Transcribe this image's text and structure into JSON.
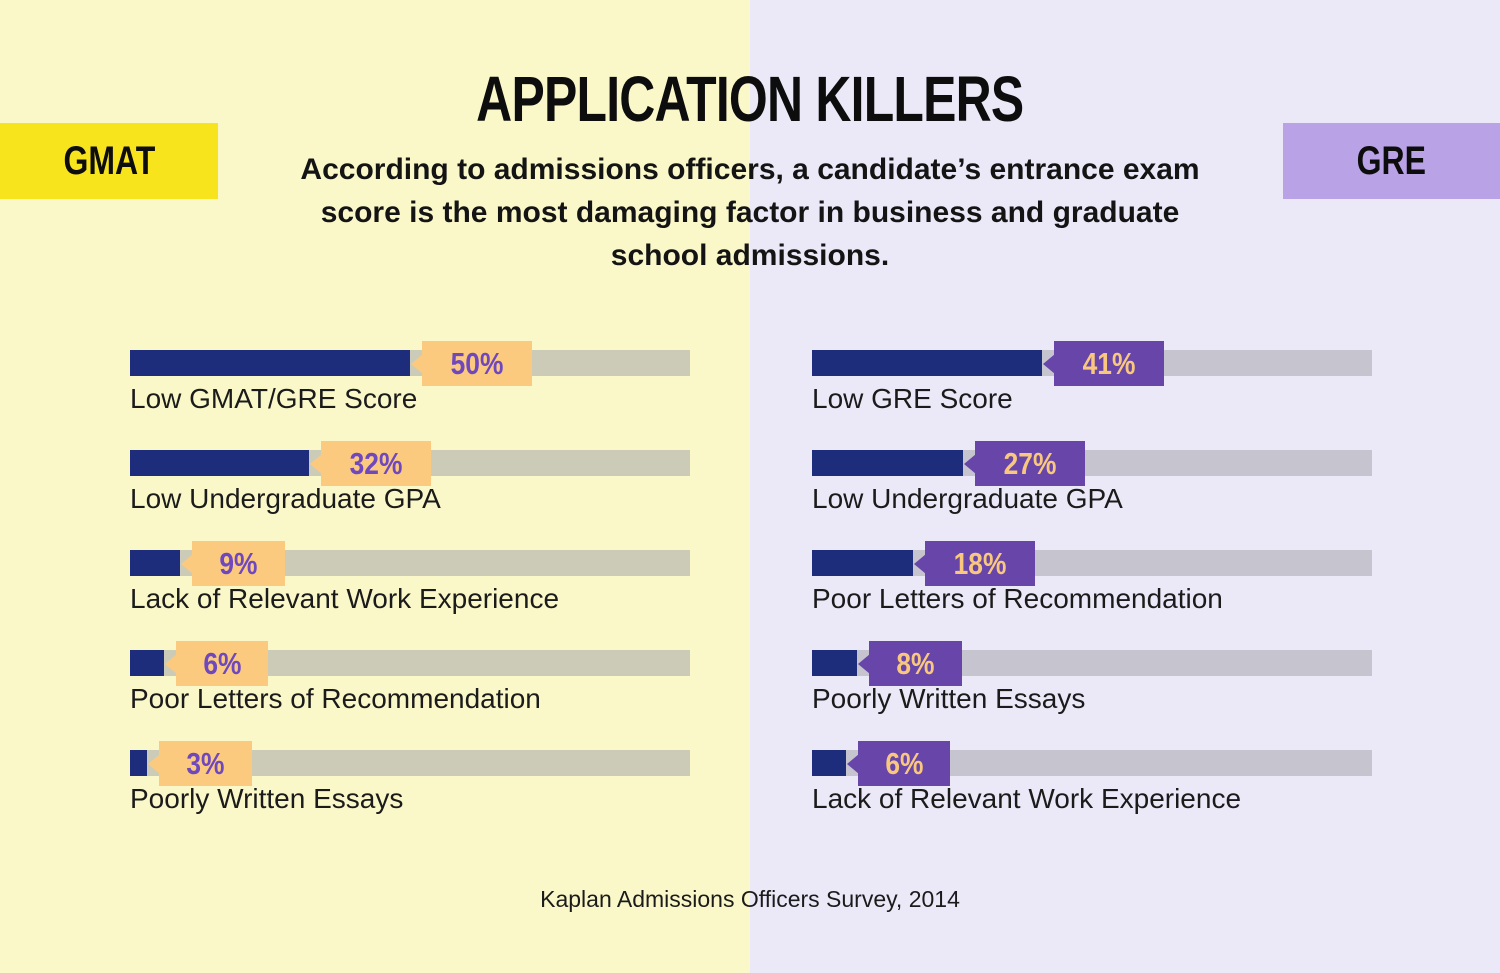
{
  "header": {
    "title": "APPLICATION KILLERS",
    "subtitle": "According to admissions officers, a candidate’s entrance exam score is the most damaging factor in business and graduate school admissions.",
    "gmat_badge_label": "GMAT",
    "gre_badge_label": "GRE"
  },
  "footer": {
    "source": "Kaplan Admissions Officers Survey, 2014"
  },
  "chart_data": {
    "type": "bar",
    "title": "APPLICATION KILLERS",
    "subtitle": "According to admissions officers, a candidate’s entrance exam score is the most damaging factor in business and graduate school admissions.",
    "unit": "%",
    "xlim": [
      0,
      100
    ],
    "orientation": "horizontal",
    "grid": false,
    "legend_position": "top-corners",
    "series": [
      {
        "name": "GMAT",
        "items": [
          {
            "label": "Low GMAT/GRE Score",
            "value": 50
          },
          {
            "label": "Low Undergraduate GPA",
            "value": 32
          },
          {
            "label": "Lack of Relevant Work Experience",
            "value": 9
          },
          {
            "label": "Poor Letters of Recommendation",
            "value": 6
          },
          {
            "label": "Poorly Written Essays",
            "value": 3
          }
        ]
      },
      {
        "name": "GRE",
        "items": [
          {
            "label": "Low GRE Score",
            "value": 41
          },
          {
            "label": "Low Undergraduate GPA",
            "value": 27
          },
          {
            "label": "Poor Letters of Recommendation",
            "value": 18
          },
          {
            "label": "Poorly Written Essays",
            "value": 8
          },
          {
            "label": "Lack of Relevant Work Experience",
            "value": 6
          }
        ]
      }
    ],
    "source": "Kaplan Admissions Officers Survey, 2014"
  },
  "colors": {
    "bg_left": "#faf8c9",
    "bg_right": "#ebe9f8",
    "gmat_badge": "#f8e41d",
    "gre_badge": "#b9a3e6",
    "bar_fill": "#1e2c7c",
    "track_left": "#cccbb8",
    "track_right": "#c6c5cf",
    "value_badge_left_bg": "#fbca7f",
    "value_badge_left_text": "#7048be",
    "value_badge_right_bg": "#6745a9",
    "value_badge_right_text": "#f9c87e"
  }
}
